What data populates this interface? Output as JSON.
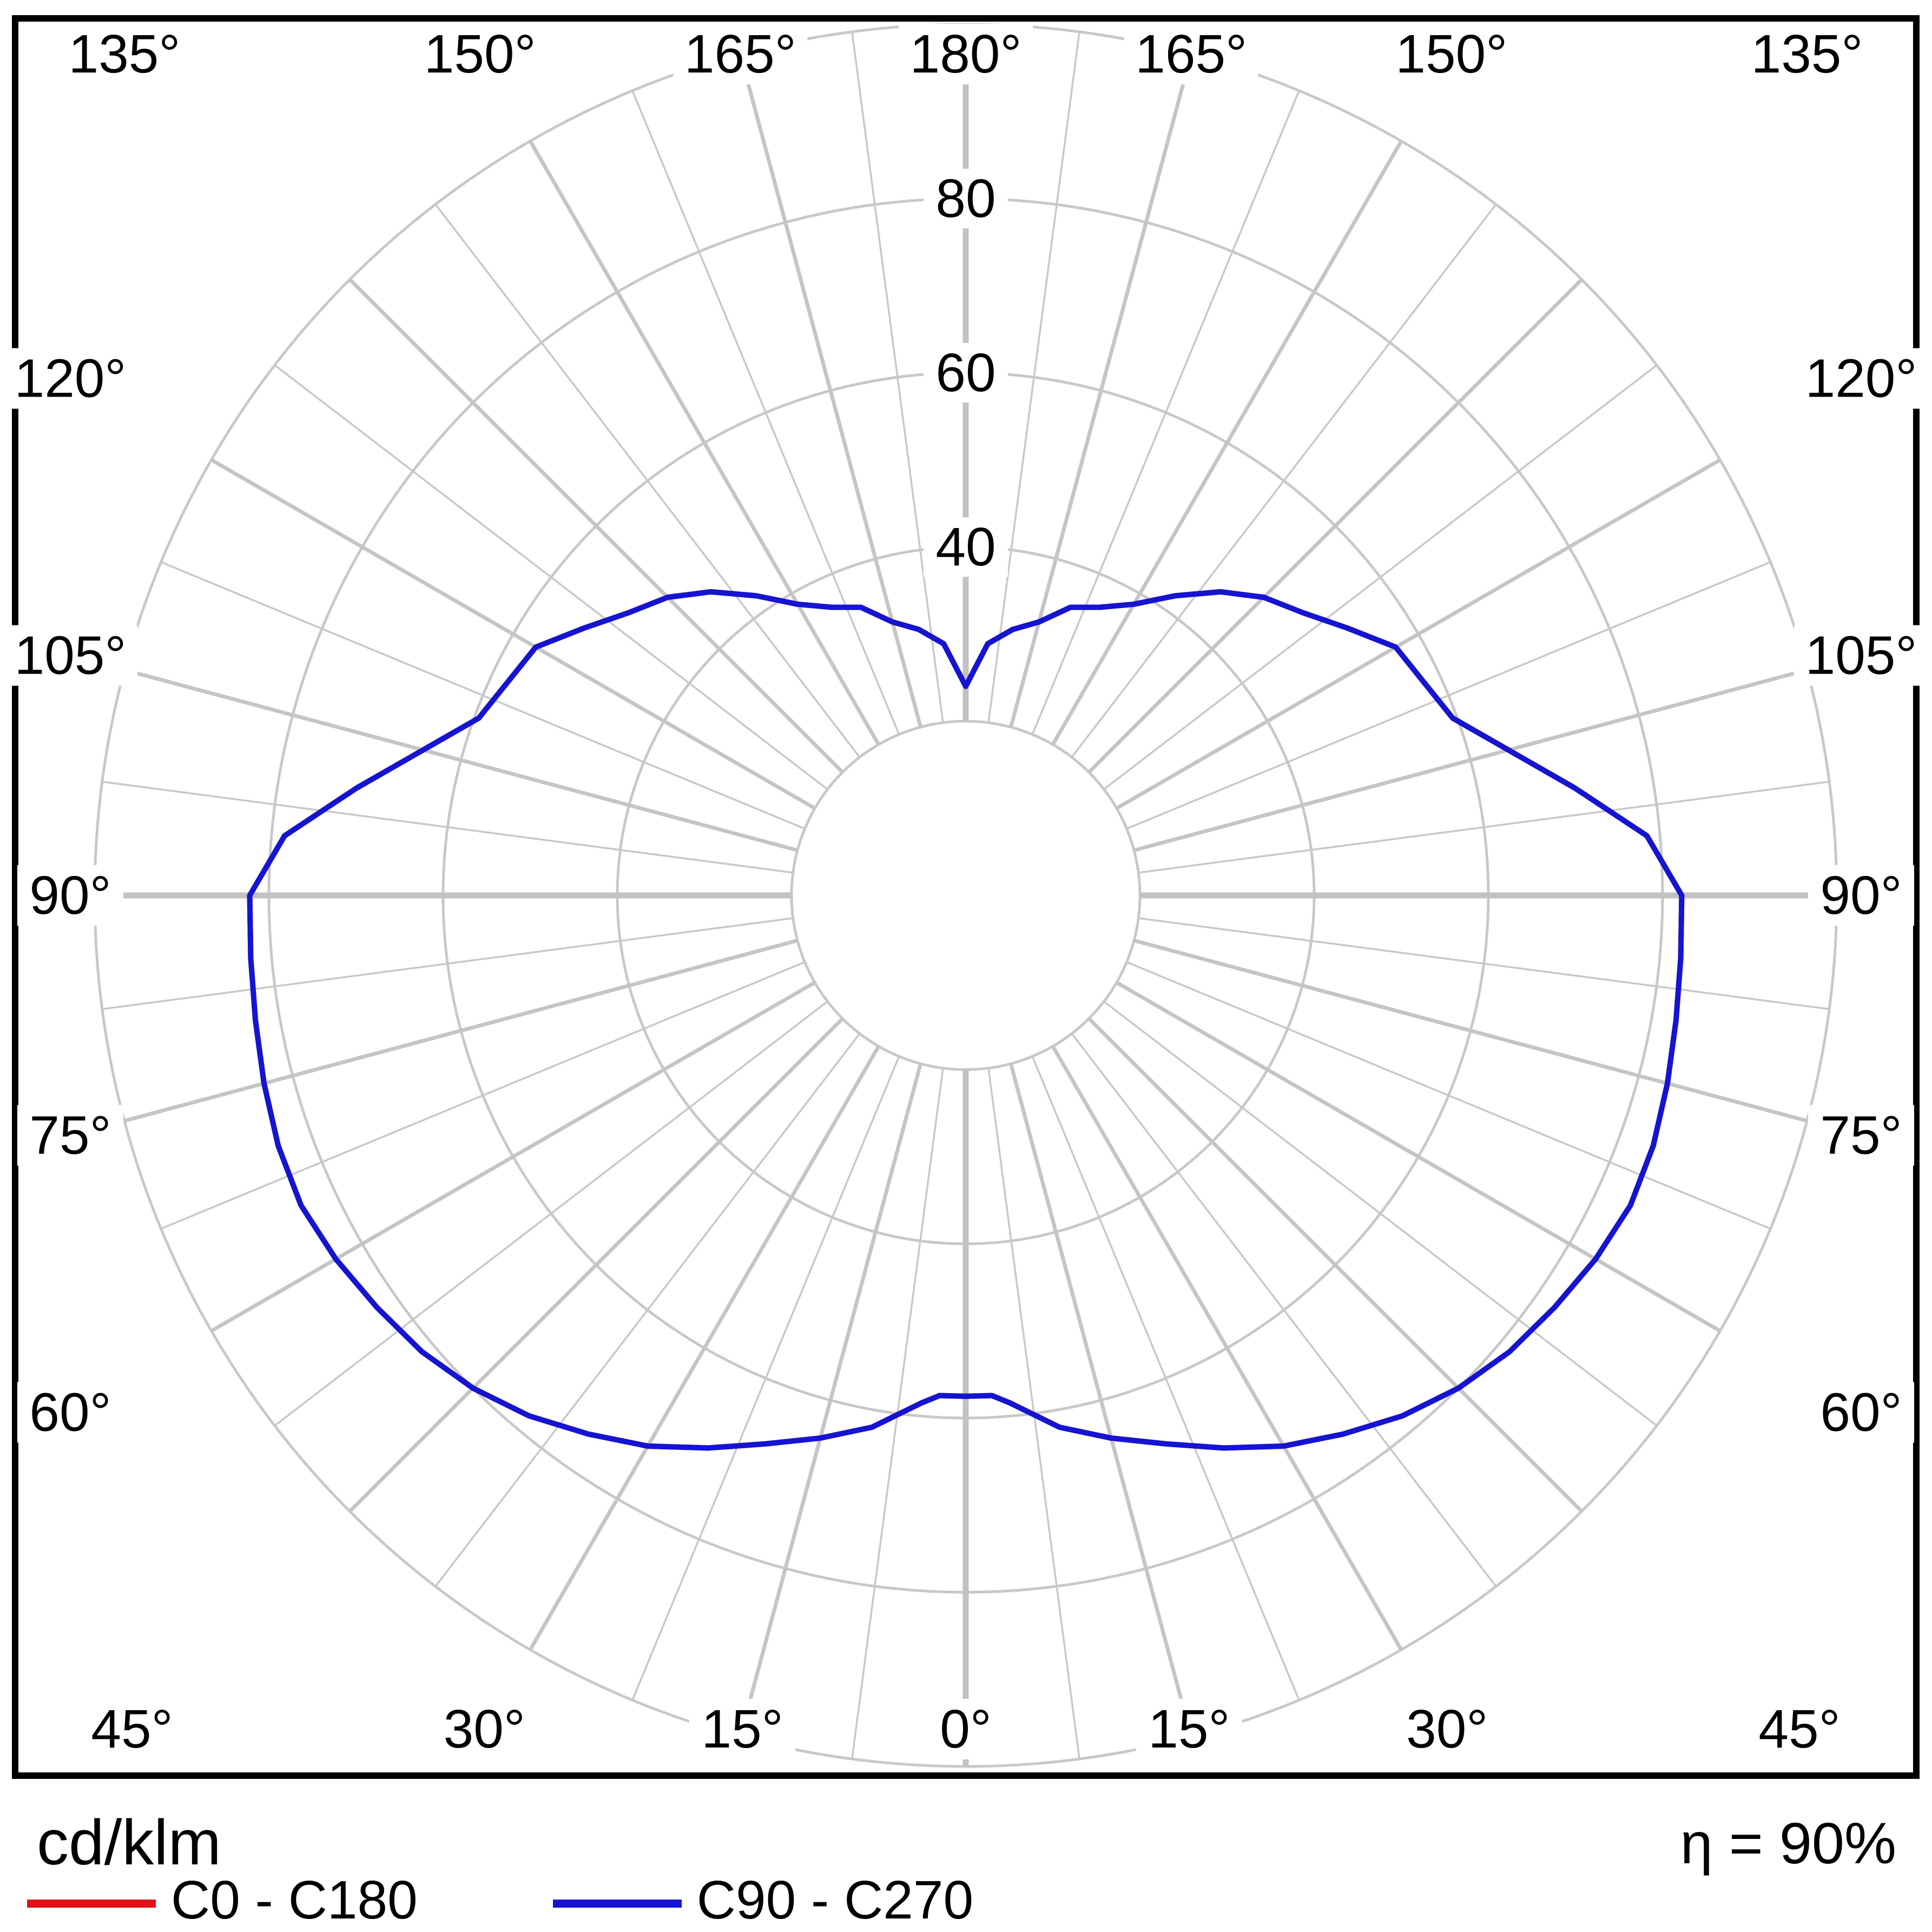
{
  "page": {
    "unit_label": "cd/klm",
    "efficiency": "η = 90%"
  },
  "legend": [
    {
      "label": "C0 - C180",
      "color": "#e01119"
    },
    {
      "label": "C90 - C270",
      "color": "#1414d2"
    }
  ],
  "chart_data": {
    "type": "polar",
    "subtype": "luminous-intensity-distribution",
    "units": "cd/klm",
    "efficiency": "η = 90%",
    "radial_axis": {
      "ticks": [
        40,
        60,
        80
      ],
      "grid_rings": [
        20,
        40,
        60,
        80,
        100
      ],
      "max": 100
    },
    "angle_axis": {
      "label_step_deg": 15,
      "minor_grid_step_deg": 7.5,
      "zero_at": "bottom",
      "labels": [
        {
          "angle": 0,
          "text": "0°"
        },
        {
          "angle": 15,
          "text": "15°"
        },
        {
          "angle": 30,
          "text": "30°"
        },
        {
          "angle": 45,
          "text": "45°"
        },
        {
          "angle": 60,
          "text": "60°"
        },
        {
          "angle": 75,
          "text": "75°"
        },
        {
          "angle": 90,
          "text": "90°"
        },
        {
          "angle": 105,
          "text": "105°"
        },
        {
          "angle": 120,
          "text": "120°"
        },
        {
          "angle": 135,
          "text": "135°"
        },
        {
          "angle": 150,
          "text": "150°"
        },
        {
          "angle": 165,
          "text": "165°"
        },
        {
          "angle": 180,
          "text": "180°"
        }
      ]
    },
    "series": [
      {
        "name": "C0 - C180",
        "color": "#e01119",
        "mirrored": true,
        "points": [
          [
            0,
            57.5
          ],
          [
            3,
            57.5
          ],
          [
            5,
            58.5
          ],
          [
            10,
            62
          ],
          [
            15,
            64.5
          ],
          [
            20,
            67
          ],
          [
            25,
            70
          ],
          [
            30,
            73
          ],
          [
            35,
            75.5
          ],
          [
            40,
            78
          ],
          [
            45,
            80
          ],
          [
            50,
            81.5
          ],
          [
            55,
            82.5
          ],
          [
            60,
            83.5
          ],
          [
            65,
            84.2
          ],
          [
            70,
            84
          ],
          [
            75,
            83.4
          ],
          [
            80,
            82.8
          ],
          [
            85,
            82.4
          ],
          [
            90,
            82.2
          ],
          [
            95,
            78.5
          ],
          [
            100,
            71
          ],
          [
            105,
            64.5
          ],
          [
            110,
            59.5
          ],
          [
            115,
            58
          ],
          [
            120,
            57
          ],
          [
            125,
            53.5
          ],
          [
            130,
            50.5
          ],
          [
            135,
            48.4
          ],
          [
            140,
            45.5
          ],
          [
            145,
            42
          ],
          [
            150,
            38.6
          ],
          [
            155,
            36.5
          ],
          [
            160,
            35.2
          ],
          [
            165,
            32.5
          ],
          [
            170,
            31
          ],
          [
            175,
            29
          ],
          [
            180,
            24
          ]
        ]
      },
      {
        "name": "C90 - C270",
        "color": "#1414d2",
        "mirrored": true,
        "points": [
          [
            0,
            57.5
          ],
          [
            3,
            57.5
          ],
          [
            5,
            58.5
          ],
          [
            10,
            62
          ],
          [
            15,
            64.5
          ],
          [
            20,
            67
          ],
          [
            25,
            70
          ],
          [
            30,
            73
          ],
          [
            35,
            75.5
          ],
          [
            40,
            78
          ],
          [
            45,
            80
          ],
          [
            50,
            81.5
          ],
          [
            55,
            82.5
          ],
          [
            60,
            83.5
          ],
          [
            65,
            84.2
          ],
          [
            70,
            84
          ],
          [
            75,
            83.4
          ],
          [
            80,
            82.8
          ],
          [
            85,
            82.4
          ],
          [
            90,
            82.2
          ],
          [
            95,
            78.5
          ],
          [
            100,
            71
          ],
          [
            105,
            64.5
          ],
          [
            110,
            59.5
          ],
          [
            115,
            58
          ],
          [
            120,
            57
          ],
          [
            125,
            53.5
          ],
          [
            130,
            50.5
          ],
          [
            135,
            48.4
          ],
          [
            140,
            45.5
          ],
          [
            145,
            42
          ],
          [
            150,
            38.6
          ],
          [
            155,
            36.5
          ],
          [
            160,
            35.2
          ],
          [
            165,
            32.5
          ],
          [
            170,
            31
          ],
          [
            175,
            29
          ],
          [
            180,
            24
          ]
        ]
      }
    ]
  }
}
